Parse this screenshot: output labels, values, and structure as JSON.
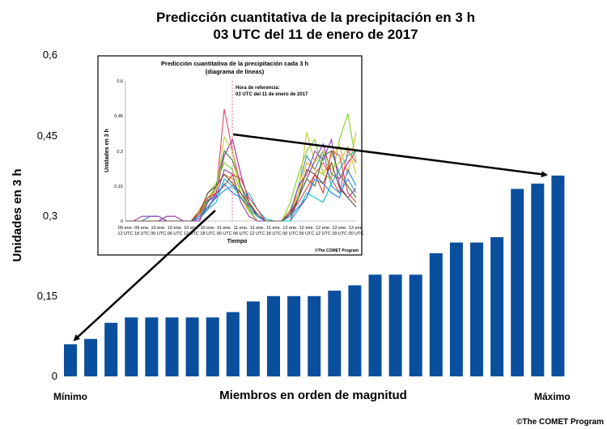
{
  "chart_data": [
    {
      "type": "bar",
      "title": "Predicción cuantitativa de la precipitación en 3 h",
      "subtitle": "03 UTC del 11 de enero de 2017",
      "xlabel": "Miembros en orden de magnitud",
      "ylabel": "Unidades en 3 h",
      "ylim": [
        0,
        0.6
      ],
      "yticks": [
        "0",
        "0,15",
        "0,3",
        "0,45",
        "0,6"
      ],
      "x_left_label": "Mínimo",
      "x_right_label": "Máximo",
      "values": [
        0.06,
        0.07,
        0.1,
        0.11,
        0.11,
        0.11,
        0.11,
        0.11,
        0.12,
        0.14,
        0.15,
        0.15,
        0.15,
        0.16,
        0.17,
        0.19,
        0.19,
        0.19,
        0.23,
        0.25,
        0.25,
        0.26,
        0.35,
        0.36,
        0.375
      ],
      "bar_color": "#0a4f9e",
      "grid": false
    },
    {
      "type": "line",
      "title": "Predicción cuantitativa de la precipitación cada 3 h",
      "subtitle": "(diagrama de líneas)",
      "xlabel": "Tiempo",
      "ylabel": "Unidades en 3 h",
      "ylim": [
        0,
        0.6
      ],
      "yticks": [
        "0",
        "0,15",
        "0,3",
        "0,45",
        "0,6"
      ],
      "categories": [
        "09 ene.\n12 UTC",
        "09 ene.\n18 UTC",
        "10 ene.\n00 UTC",
        "10 ene.\n06 UTC",
        "10 ene.\n12 UTC",
        "10 ene.\n18 UTC",
        "11 ene.\n00 UTC",
        "11 ene.\n06 UTC",
        "11 ene.\n12 UTC",
        "11 ene.\n18 UTC",
        "12 ene.\n00 UTC",
        "12 ene.\n06 UTC",
        "12 ene.\n12 UTC",
        "12 ene.\n18 UTC",
        "13 ene.\n00 UTC"
      ],
      "reference_label": "Hora de referencia:",
      "reference_time": "03 UTC del 11 de enero de 2017",
      "x": [
        0,
        0.5,
        1,
        1.5,
        2,
        2.5,
        3,
        3.5,
        4,
        4.5,
        5,
        5.5,
        6,
        6.5,
        7,
        7.5,
        8,
        8.5,
        9,
        9.5,
        10,
        10.5,
        11,
        11.5,
        12,
        12.5,
        13,
        13.5,
        14
      ],
      "series": [
        {
          "color": "#e0446a",
          "values": [
            0,
            0,
            0,
            0,
            0,
            0,
            0,
            0,
            0,
            0.02,
            0.05,
            0.12,
            0.48,
            0.3,
            0.15,
            0.06,
            0.02,
            0,
            0,
            0,
            0,
            0.05,
            0.1,
            0.2,
            0.25,
            0.18,
            0.12,
            0.3,
            0.25
          ]
        },
        {
          "color": "#3c8dbc",
          "values": [
            0,
            0,
            0,
            0.02,
            0.02,
            0,
            0,
            0,
            0,
            0.03,
            0.09,
            0.1,
            0.13,
            0.15,
            0.12,
            0.05,
            0,
            0,
            0,
            0,
            0.03,
            0.15,
            0.28,
            0.22,
            0.3,
            0.15,
            0.12,
            0.18,
            0.12
          ]
        },
        {
          "color": "#9c27b0",
          "values": [
            0,
            0,
            0,
            0,
            0,
            0.02,
            0.02,
            0,
            0,
            0,
            0.08,
            0.12,
            0.28,
            0.35,
            0.2,
            0.08,
            0.02,
            0,
            0,
            0,
            0,
            0.1,
            0.18,
            0.26,
            0.33,
            0.2,
            0.18,
            0.25,
            0.3
          ]
        },
        {
          "color": "#f5a623",
          "values": [
            0,
            0,
            0,
            0,
            0,
            0,
            0,
            0,
            0,
            0.05,
            0.1,
            0.14,
            0.2,
            0.18,
            0.1,
            0.04,
            0,
            0,
            0,
            0,
            0.05,
            0.12,
            0.25,
            0.22,
            0.2,
            0.28,
            0.32,
            0.2,
            0.38
          ]
        },
        {
          "color": "#7ed321",
          "values": [
            0,
            0,
            0,
            0,
            0,
            0,
            0,
            0,
            0,
            0.03,
            0.12,
            0.16,
            0.25,
            0.22,
            0.12,
            0.05,
            0.02,
            0,
            0,
            0,
            0.08,
            0.2,
            0.3,
            0.35,
            0.2,
            0.18,
            0.35,
            0.46,
            0.25
          ]
        },
        {
          "color": "#2e7d32",
          "values": [
            0,
            0,
            0,
            0,
            0,
            0,
            0,
            0,
            0,
            0.02,
            0.08,
            0.15,
            0.3,
            0.26,
            0.15,
            0.08,
            0.03,
            0,
            0,
            0,
            0.02,
            0.1,
            0.18,
            0.15,
            0.28,
            0.3,
            0.2,
            0.15,
            0.1
          ]
        },
        {
          "color": "#00bcd4",
          "values": [
            0,
            0,
            0,
            0,
            0,
            0,
            0,
            0,
            0,
            0.01,
            0.05,
            0.08,
            0.18,
            0.15,
            0.1,
            0.12,
            0.05,
            0.01,
            0,
            0,
            0,
            0.05,
            0.12,
            0.1,
            0.08,
            0.16,
            0.22,
            0.28,
            0.3
          ]
        },
        {
          "color": "#c0ca33",
          "values": [
            0,
            0,
            0,
            0,
            0,
            0,
            0,
            0,
            0,
            0.02,
            0.1,
            0.13,
            0.36,
            0.3,
            0.12,
            0.04,
            0,
            0,
            0,
            0,
            0.02,
            0.12,
            0.38,
            0.25,
            0.3,
            0.22,
            0.25,
            0.32,
            0.2
          ]
        },
        {
          "color": "#8e44ad",
          "values": [
            0,
            0,
            0.02,
            0.02,
            0.02,
            0,
            0,
            0,
            0,
            0.01,
            0.06,
            0.1,
            0.22,
            0.2,
            0.08,
            0.02,
            0,
            0,
            0,
            0,
            0.04,
            0.15,
            0.2,
            0.3,
            0.26,
            0.35,
            0.15,
            0.1,
            0.14
          ]
        },
        {
          "color": "#e53935",
          "values": [
            0,
            0,
            0,
            0,
            0,
            0,
            0,
            0,
            0,
            0.03,
            0.1,
            0.12,
            0.15,
            0.2,
            0.18,
            0.1,
            0.05,
            0,
            0,
            0,
            0.03,
            0.08,
            0.14,
            0.2,
            0.12,
            0.3,
            0.28,
            0.12,
            0.08
          ]
        },
        {
          "color": "#1e88e5",
          "values": [
            0,
            0,
            0,
            0,
            0,
            0,
            0,
            0,
            0,
            0.02,
            0.06,
            0.11,
            0.16,
            0.12,
            0.1,
            0.06,
            0.02,
            0,
            0,
            0,
            0.02,
            0.06,
            0.1,
            0.18,
            0.16,
            0.12,
            0.1,
            0.22,
            0.15
          ]
        },
        {
          "color": "#6d4c41",
          "values": [
            0,
            0,
            0,
            0,
            0,
            0,
            0,
            0,
            0,
            0.04,
            0.12,
            0.15,
            0.2,
            0.16,
            0.12,
            0.07,
            0.03,
            0,
            0,
            0,
            0.03,
            0.1,
            0.22,
            0.2,
            0.16,
            0.25,
            0.14,
            0.1,
            0.06
          ]
        }
      ]
    }
  ],
  "copyright": "©The COMET Program",
  "inset_copyright": "©The COMET Program"
}
